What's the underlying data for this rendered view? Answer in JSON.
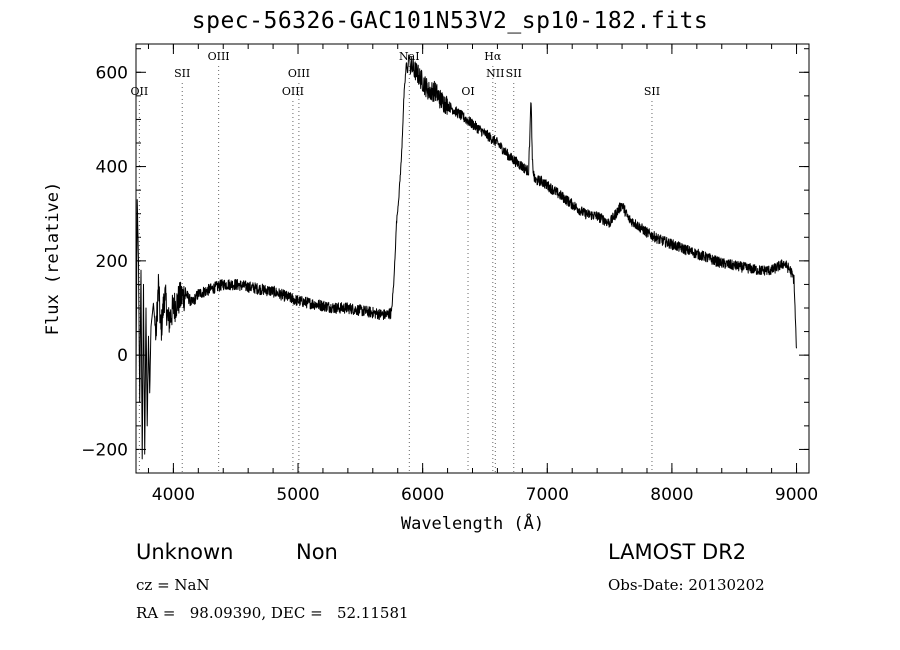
{
  "chart_data": {
    "type": "line",
    "title": "spec-56326-GAC101N53V2_sp10-182.fits",
    "xlabel": "Wavelength (Å)",
    "ylabel": "Flux (relative)",
    "xlim": [
      3700,
      9100
    ],
    "ylim": [
      -250,
      660
    ],
    "x_ticks": [
      4000,
      5000,
      6000,
      7000,
      8000,
      9000
    ],
    "y_ticks": [
      -200,
      0,
      200,
      400,
      600
    ],
    "x_minor_step": 200,
    "y_minor_step": 50,
    "grid": false,
    "series": [
      {
        "x": [
          3700,
          3710,
          3720,
          3730,
          3740,
          3750,
          3760,
          3770,
          3780,
          3790,
          3800,
          3810,
          3820,
          3840,
          3860,
          3880,
          3900,
          3930,
          3960,
          4000,
          4050,
          4100,
          4150,
          4200,
          4300,
          4400,
          4500,
          4600,
          4700,
          4800,
          4900,
          5000,
          5100,
          5200,
          5300,
          5400,
          5500,
          5600,
          5700,
          5750,
          5770,
          5790,
          5810,
          5830,
          5850,
          5870,
          5880,
          5890,
          5900,
          5950,
          6000,
          6050,
          6100,
          6150,
          6200,
          6300,
          6400,
          6500,
          6600,
          6700,
          6800,
          6850,
          6870,
          6880,
          6890,
          6900,
          6950,
          7000,
          7100,
          7200,
          7300,
          7400,
          7500,
          7550,
          7600,
          7650,
          7700,
          7800,
          7900,
          8000,
          8100,
          8200,
          8300,
          8400,
          8500,
          8600,
          8700,
          8800,
          8900,
          8950,
          8980,
          9000
        ],
        "values": [
          -50,
          330,
          200,
          -100,
          180,
          -220,
          150,
          -210,
          100,
          -150,
          40,
          -80,
          60,
          110,
          40,
          150,
          50,
          130,
          70,
          100,
          120,
          130,
          110,
          130,
          140,
          150,
          150,
          145,
          140,
          135,
          125,
          115,
          110,
          105,
          100,
          100,
          95,
          90,
          85,
          90,
          160,
          280,
          340,
          420,
          550,
          620,
          600,
          640,
          615,
          600,
          580,
          560,
          560,
          540,
          530,
          510,
          490,
          470,
          450,
          420,
          400,
          390,
          545,
          410,
          385,
          370,
          370,
          360,
          340,
          320,
          300,
          295,
          280,
          300,
          320,
          290,
          280,
          260,
          245,
          235,
          225,
          215,
          205,
          195,
          190,
          185,
          180,
          180,
          195,
          180,
          160,
          5
        ]
      }
    ],
    "lines": [
      {
        "label": "OII",
        "x": 3727,
        "row": 3
      },
      {
        "label": "SII",
        "x": 4071,
        "row": 2
      },
      {
        "label": "OIII",
        "x": 4363,
        "row": 1
      },
      {
        "label": "OIII",
        "x": 4959,
        "row": 3
      },
      {
        "label": "OIII",
        "x": 5007,
        "row": 2
      },
      {
        "label": "NaI",
        "x": 5893,
        "row": 1
      },
      {
        "label": "OI",
        "x": 6364,
        "row": 3
      },
      {
        "label": "Hα",
        "x": 6563,
        "row": 1
      },
      {
        "label": "NII",
        "x": 6583,
        "row": 2
      },
      {
        "label": "SII",
        "x": 6731,
        "row": 2
      },
      {
        "label": "SII",
        "x": 7840,
        "row": 3
      }
    ]
  },
  "footer": {
    "class": "Unknown",
    "subclass": "Non",
    "cz": "cz = NaN",
    "radec": "RA =   98.09390, DEC =   52.11581",
    "survey": "LAMOST DR2",
    "obsdate": "Obs-Date: 20130202"
  },
  "colors": {
    "line": "#000000",
    "background": "#ffffff"
  }
}
